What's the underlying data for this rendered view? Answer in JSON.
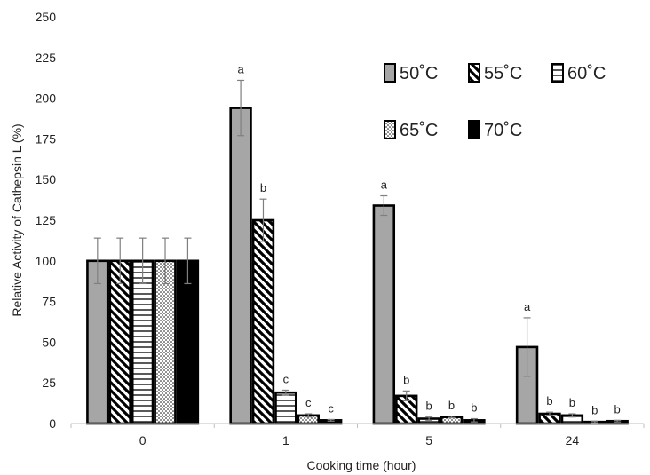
{
  "chart_data": {
    "type": "bar",
    "xlabel": "Cooking time (hour)",
    "ylabel": "Relative Activity of Cathepsin L (%)",
    "categories": [
      "0",
      "1",
      "5",
      "24"
    ],
    "ylim": [
      0,
      250
    ],
    "yticks": [
      0,
      25,
      50,
      75,
      100,
      125,
      150,
      175,
      200,
      225,
      250
    ],
    "grid": false,
    "legend_position": "top-right",
    "series": [
      {
        "name": "50˚C",
        "pattern": "solid-gray",
        "color": "#a6a6a6",
        "values": [
          100,
          194,
          134,
          47
        ],
        "errors": [
          14,
          17,
          6,
          18
        ],
        "letters": [
          "",
          "a",
          "a",
          "a"
        ]
      },
      {
        "name": "55˚C",
        "pattern": "diagonal-stripes",
        "color": "#000000",
        "values": [
          100,
          125,
          17,
          6
        ],
        "errors": [
          14,
          13,
          3,
          1
        ],
        "letters": [
          "",
          "b",
          "b",
          "b"
        ]
      },
      {
        "name": "60˚C",
        "pattern": "horizontal-stripes",
        "color": "#000000",
        "values": [
          100,
          19,
          3,
          5
        ],
        "errors": [
          14,
          1.5,
          1,
          1
        ],
        "letters": [
          "",
          "c",
          "b",
          "b"
        ]
      },
      {
        "name": "65˚C",
        "pattern": "dots",
        "color": "#000000",
        "values": [
          100,
          5,
          4,
          1
        ],
        "errors": [
          14,
          1,
          0.5,
          0.5
        ],
        "letters": [
          "",
          "c",
          "b",
          "b"
        ]
      },
      {
        "name": "70˚C",
        "pattern": "solid-black",
        "color": "#000000",
        "values": [
          100,
          2,
          2,
          1.5
        ],
        "errors": [
          14,
          0.5,
          1,
          0.5
        ],
        "letters": [
          "",
          "c",
          "b",
          "b"
        ]
      }
    ]
  }
}
